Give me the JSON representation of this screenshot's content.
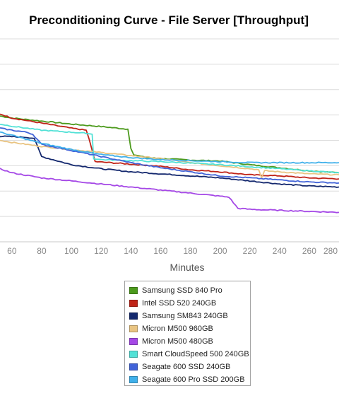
{
  "chart_data": {
    "type": "line",
    "title": "Preconditioning Curve - File Server [Throughput]",
    "xlabel": "Minutes",
    "ylabel": "",
    "xlim": [
      52,
      280
    ],
    "ylim": [
      0,
      100
    ],
    "x_ticks": [
      60,
      80,
      100,
      120,
      140,
      160,
      180,
      200,
      220,
      240,
      260,
      280
    ],
    "grid": true,
    "legend_position": "bottom",
    "series": [
      {
        "name": "Samsung SSD 840 Pro",
        "color": "#4c9a1c",
        "x": [
          52,
          60,
          80,
          100,
          120,
          138,
          140,
          142,
          150,
          160,
          180,
          200,
          220,
          240,
          260,
          280
        ],
        "y": [
          62,
          61,
          59.5,
          58,
          56.8,
          55.5,
          46,
          43,
          41.5,
          41,
          40.3,
          39.8,
          38,
          36.5,
          35,
          34
        ]
      },
      {
        "name": "Intel SSD 520 240GB",
        "color": "#c02418",
        "x": [
          52,
          60,
          80,
          100,
          110,
          112,
          114,
          116,
          130,
          160,
          180,
          200,
          220,
          240,
          260,
          280
        ],
        "y": [
          63,
          61,
          58.5,
          56,
          55,
          50.5,
          45,
          39.5,
          38.8,
          37.2,
          35.5,
          34.5,
          33,
          32.5,
          31.5,
          31
        ]
      },
      {
        "name": "Samsung SM843 240GB",
        "color": "#14286e",
        "x": [
          52,
          60,
          70,
          75,
          80,
          100,
          120,
          140,
          160,
          180,
          200,
          220,
          240,
          260,
          280
        ],
        "y": [
          52,
          51.8,
          51.5,
          51,
          42,
          38,
          36,
          34.5,
          33.5,
          32.5,
          31.5,
          30,
          28.5,
          27.5,
          27
        ]
      },
      {
        "name": "Micron M500 960GB",
        "color": "#e9c482",
        "x": [
          52,
          60,
          80,
          100,
          120,
          140,
          160,
          180,
          200,
          220,
          226,
          228,
          230,
          240,
          260,
          280
        ],
        "y": [
          50,
          49,
          47,
          45.5,
          44,
          42.5,
          41,
          39,
          37.5,
          36,
          35.5,
          31.5,
          35,
          34.5,
          33.5,
          33
        ]
      },
      {
        "name": "Micron M500 480GB",
        "color": "#a548e6",
        "x": [
          52,
          60,
          80,
          100,
          120,
          140,
          160,
          180,
          200,
          206,
          212,
          220,
          240,
          260,
          280
        ],
        "y": [
          36,
          34,
          31.5,
          30,
          28.5,
          27,
          25.5,
          24,
          22.5,
          22,
          16.5,
          16,
          15.5,
          15,
          14.5
        ]
      },
      {
        "name": "Smart CloudSpeed 500 240GB",
        "color": "#52e1d6",
        "x": [
          52,
          60,
          80,
          100,
          110,
          114,
          115,
          120,
          140,
          160,
          180,
          200,
          220,
          240,
          260,
          280
        ],
        "y": [
          58,
          57,
          55,
          54,
          53.5,
          53,
          41,
          40.5,
          40,
          39.5,
          38.8,
          38,
          37,
          36,
          35,
          34
        ]
      },
      {
        "name": "Seagate 600 SSD 240GB",
        "color": "#4163d8",
        "x": [
          52,
          60,
          70,
          74,
          80,
          100,
          120,
          140,
          160,
          180,
          200,
          220,
          240,
          260,
          280
        ],
        "y": [
          56,
          55,
          54,
          53,
          48,
          45,
          42,
          39,
          36.5,
          34.5,
          32.5,
          31.5,
          30.5,
          29.5,
          29
        ]
      },
      {
        "name": "Seagate 600 Pro SSD 200GB",
        "color": "#3fb0ea",
        "x": [
          52,
          60,
          80,
          100,
          120,
          140,
          160,
          180,
          200,
          220,
          240,
          260,
          280
        ],
        "y": [
          54,
          52.5,
          48.5,
          45.5,
          43,
          41.5,
          40.5,
          40,
          39.5,
          39,
          39,
          39,
          39
        ]
      }
    ]
  }
}
